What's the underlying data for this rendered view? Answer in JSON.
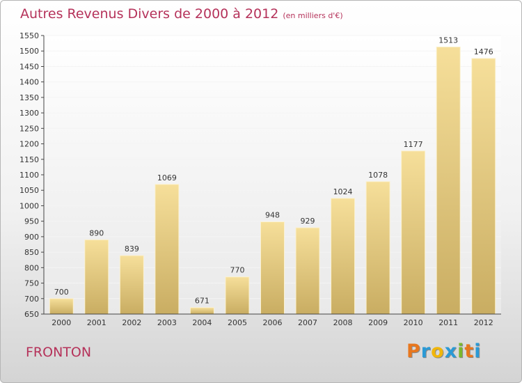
{
  "header": {
    "title": "Autres Revenus Divers de 2000 à 2012",
    "subtitle": "(en milliers d'€)"
  },
  "footer": {
    "place": "FRONTON",
    "logo": {
      "letters": [
        "P",
        "r",
        "o",
        "x",
        "i",
        "t",
        "i"
      ],
      "colors": [
        "#e8771e",
        "#2a9ad6",
        "#f1b60b",
        "#2a9ad6",
        "#7ab72e",
        "#e8771e",
        "#2a9ad6"
      ]
    }
  },
  "colors": {
    "title": "#b5325a",
    "bar_light": "#f6df9a",
    "bar_dark": "#c9ad62",
    "axis": "#444444",
    "grid": "#f4f4f4"
  },
  "chart_data": {
    "type": "bar",
    "title": "Autres Revenus Divers de 2000 à 2012",
    "subtitle": "(en milliers d'€)",
    "xlabel": "",
    "ylabel": "",
    "categories": [
      "2000",
      "2001",
      "2002",
      "2003",
      "2004",
      "2005",
      "2006",
      "2007",
      "2008",
      "2009",
      "2010",
      "2011",
      "2012"
    ],
    "values": [
      700,
      890,
      839,
      1069,
      671,
      770,
      948,
      929,
      1024,
      1078,
      1177,
      1513,
      1476
    ],
    "data_labels": [
      "700",
      "890",
      "839",
      "1069",
      "671",
      "770",
      "948",
      "929",
      "1024",
      "1078",
      "1177",
      "1513",
      "1476"
    ],
    "ylim": [
      650,
      1550
    ],
    "yticks": [
      "650",
      "700",
      "750",
      "800",
      "850",
      "900",
      "950",
      "1000",
      "1050",
      "1100",
      "1150",
      "1200",
      "1250",
      "1300",
      "1350",
      "1400",
      "1450",
      "1500",
      "1550"
    ],
    "grid": true,
    "legend": "none"
  }
}
